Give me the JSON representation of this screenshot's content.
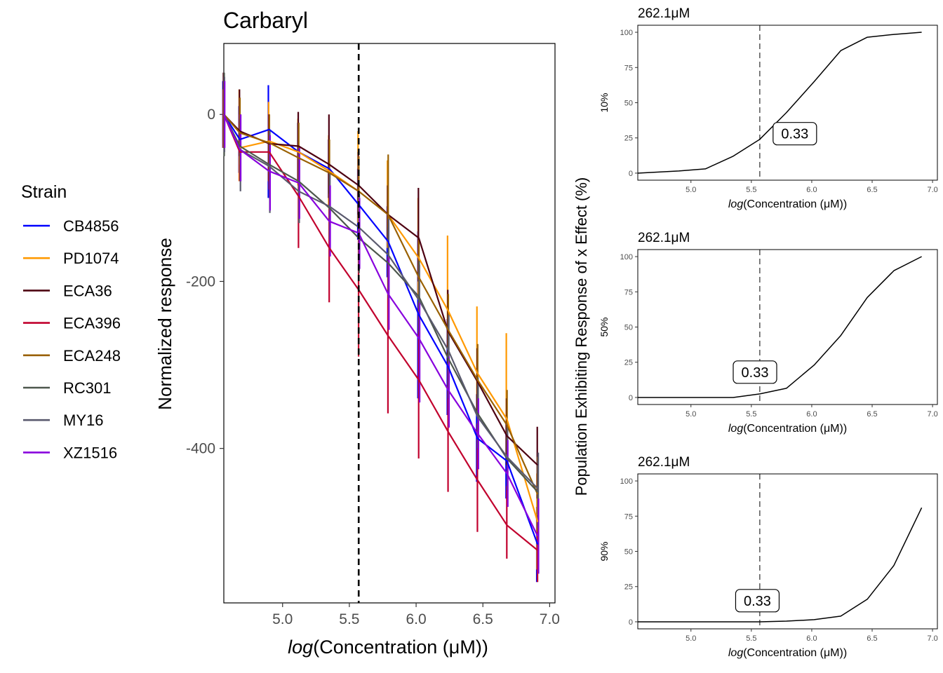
{
  "main_chart_title": "Carbaryl",
  "legend_title": "Strain",
  "shared_ylabel": "Population Exhibiting Response of x Effect (%)",
  "chart_data": [
    {
      "type": "line",
      "title": "Carbaryl",
      "xlabel_italic": "log",
      "xlabel_rest": "(Concentration (μM))",
      "ylabel": "Normalized response",
      "xlim": [
        4.56,
        7.04
      ],
      "ylim": [
        -585,
        85
      ],
      "xticks": [
        5.0,
        5.5,
        6.0,
        6.5,
        7.0
      ],
      "xtick_labels": [
        "5.0",
        "5.5",
        "6.0",
        "6.5",
        "7.0"
      ],
      "yticks": [
        0,
        -200,
        -400
      ],
      "ytick_labels": [
        "0",
        "-200",
        "-400"
      ],
      "vline": 5.57,
      "x": [
        4.56,
        4.68,
        4.9,
        5.12,
        5.35,
        5.57,
        5.79,
        6.02,
        6.24,
        6.46,
        6.68,
        6.91
      ],
      "series": [
        {
          "name": "CB4856",
          "color": "#0000FF",
          "values": [
            0,
            -30,
            -18,
            -45,
            -65,
            -108,
            -152,
            -240,
            -302,
            -388,
            -415,
            -515
          ],
          "err_low": [
            -40,
            -70,
            -100,
            -80,
            -100,
            -150,
            -195,
            -340,
            -360,
            -440,
            -460,
            -560
          ],
          "err_high": [
            40,
            10,
            35,
            -10,
            -30,
            -65,
            -110,
            -140,
            -245,
            -335,
            -370,
            -470
          ]
        },
        {
          "name": "PD1074",
          "color": "#FF9900",
          "values": [
            0,
            -40,
            -32,
            -45,
            -68,
            -92,
            -120,
            -172,
            -235,
            -310,
            -365,
            -488
          ],
          "err_low": [
            -40,
            -80,
            -80,
            -85,
            -110,
            -130,
            -160,
            -220,
            -280,
            -360,
            -410,
            -545
          ],
          "err_high": [
            30,
            30,
            15,
            -5,
            -25,
            -20,
            -55,
            -100,
            -145,
            -230,
            -262,
            -430
          ]
        },
        {
          "name": "ECA36",
          "color": "#4D0011",
          "values": [
            0,
            -20,
            -35,
            -38,
            -60,
            -85,
            -120,
            -148,
            -260,
            -320,
            -385,
            -420
          ],
          "err_low": [
            -40,
            -50,
            -80,
            -80,
            -100,
            -120,
            -150,
            -200,
            -300,
            -360,
            -420,
            -460
          ],
          "err_high": [
            50,
            30,
            0,
            3,
            0,
            -45,
            -85,
            -88,
            -210,
            -280,
            -340,
            -374
          ]
        },
        {
          "name": "ECA396",
          "color": "#C1002D",
          "values": [
            0,
            -45,
            -45,
            -98,
            -160,
            -210,
            -265,
            -318,
            -380,
            -438,
            -492,
            -522
          ],
          "err_low": [
            -40,
            -80,
            -90,
            -160,
            -225,
            -290,
            -358,
            -412,
            -452,
            -500,
            -532,
            -560
          ],
          "err_high": [
            30,
            0,
            0,
            -40,
            -95,
            -130,
            -170,
            -225,
            -300,
            -370,
            -445,
            -480
          ]
        },
        {
          "name": "ECA248",
          "color": "#996000",
          "values": [
            0,
            -22,
            -34,
            -52,
            -70,
            -92,
            -120,
            -195,
            -258,
            -318,
            -372,
            -455
          ],
          "err_low": [
            -40,
            -60,
            -70,
            -95,
            -110,
            -130,
            -160,
            -240,
            -300,
            -360,
            -415,
            -500
          ],
          "err_high": [
            40,
            20,
            0,
            -10,
            -30,
            -50,
            -48,
            -150,
            -215,
            -275,
            -330,
            -410
          ]
        },
        {
          "name": "RC301",
          "color": "#4D574D",
          "values": [
            0,
            -38,
            -60,
            -80,
            -112,
            -148,
            -178,
            -218,
            -292,
            -358,
            -412,
            -452
          ],
          "err_low": [
            -50,
            -80,
            -100,
            -130,
            -150,
            -190,
            -220,
            -260,
            -340,
            -400,
            -450,
            -495
          ],
          "err_high": [
            50,
            -5,
            -20,
            -40,
            -70,
            -105,
            -135,
            -175,
            -250,
            -315,
            -375,
            -415
          ]
        },
        {
          "name": "MY16",
          "color": "#5A5A6E",
          "values": [
            0,
            -42,
            -62,
            -92,
            -110,
            -135,
            -168,
            -222,
            -282,
            -362,
            -410,
            -448
          ],
          "err_low": [
            -45,
            -92,
            -118,
            -130,
            -150,
            -175,
            -210,
            -265,
            -330,
            -400,
            -450,
            -490
          ],
          "err_high": [
            45,
            0,
            -20,
            -50,
            -70,
            -95,
            -125,
            -180,
            -240,
            -320,
            -370,
            -405
          ]
        },
        {
          "name": "XZ1516",
          "color": "#8800DD",
          "values": [
            0,
            -42,
            -68,
            -82,
            -128,
            -142,
            -215,
            -268,
            -330,
            -382,
            -430,
            -505
          ],
          "err_low": [
            -40,
            -80,
            -115,
            -125,
            -170,
            -185,
            -258,
            -345,
            -375,
            -425,
            -470,
            -550
          ],
          "err_high": [
            40,
            0,
            -25,
            -40,
            -85,
            -100,
            -170,
            -225,
            -290,
            -340,
            -390,
            -460
          ]
        }
      ]
    },
    {
      "type": "line",
      "title": "262.1μM",
      "xlabel_italic": "log",
      "xlabel_rest": "(Concentration (μM))",
      "ylabel": "10%",
      "xlim": [
        4.56,
        7.04
      ],
      "ylim": [
        -5,
        105
      ],
      "xticks": [
        5.0,
        5.5,
        6.0,
        6.5,
        7.0
      ],
      "xtick_labels": [
        "5.0",
        "5.5",
        "6.0",
        "6.5",
        "7.0"
      ],
      "yticks": [
        0,
        25,
        50,
        75,
        100
      ],
      "ytick_labels": [
        "0",
        "25",
        "50",
        "75",
        "100"
      ],
      "vline": 5.57,
      "annotation": "0.33",
      "annotation_x": 5.86,
      "annotation_y": 28,
      "x": [
        4.56,
        4.68,
        4.9,
        5.12,
        5.35,
        5.57,
        5.79,
        6.02,
        6.24,
        6.46,
        6.68,
        6.91
      ],
      "values": [
        0,
        0.5,
        1.5,
        3,
        12,
        24,
        43,
        65,
        87,
        96.5,
        98.5,
        100
      ]
    },
    {
      "type": "line",
      "title": "262.1μM",
      "xlabel_italic": "log",
      "xlabel_rest": "(Concentration (μM))",
      "ylabel": "50%",
      "xlim": [
        4.56,
        7.04
      ],
      "ylim": [
        -5,
        105
      ],
      "xticks": [
        5.0,
        5.5,
        6.0,
        6.5,
        7.0
      ],
      "xtick_labels": [
        "5.0",
        "5.5",
        "6.0",
        "6.5",
        "7.0"
      ],
      "yticks": [
        0,
        25,
        50,
        75,
        100
      ],
      "ytick_labels": [
        "0",
        "25",
        "50",
        "75",
        "100"
      ],
      "vline": 5.57,
      "annotation": "0.33",
      "annotation_x": 5.53,
      "annotation_y": 18,
      "x": [
        4.56,
        4.68,
        4.9,
        5.12,
        5.35,
        5.57,
        5.79,
        6.02,
        6.24,
        6.46,
        6.68,
        6.91
      ],
      "values": [
        0,
        0,
        0,
        0,
        0,
        2.5,
        6.5,
        23,
        44,
        71,
        90,
        100
      ]
    },
    {
      "type": "line",
      "title": "262.1μM",
      "xlabel_italic": "log",
      "xlabel_rest": "(Concentration (μM))",
      "ylabel": "90%",
      "xlim": [
        4.56,
        7.04
      ],
      "ylim": [
        -5,
        105
      ],
      "xticks": [
        5.0,
        5.5,
        6.0,
        6.5,
        7.0
      ],
      "xtick_labels": [
        "5.0",
        "5.5",
        "6.0",
        "6.5",
        "7.0"
      ],
      "yticks": [
        0,
        25,
        50,
        75,
        100
      ],
      "ytick_labels": [
        "0",
        "25",
        "50",
        "75",
        "100"
      ],
      "vline": 5.57,
      "annotation": "0.33",
      "annotation_x": 5.55,
      "annotation_y": 15,
      "x": [
        4.56,
        4.68,
        4.9,
        5.12,
        5.35,
        5.57,
        5.79,
        6.02,
        6.24,
        6.46,
        6.68,
        6.91
      ],
      "values": [
        0,
        0,
        0,
        0,
        0,
        0,
        0.5,
        1.5,
        4,
        16,
        40,
        81
      ]
    }
  ]
}
